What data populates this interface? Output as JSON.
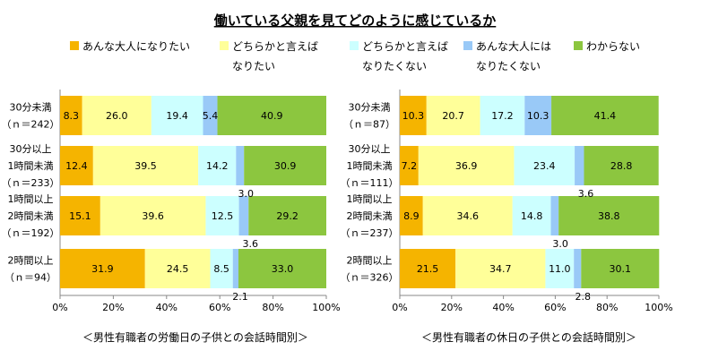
{
  "title": "働いている父親を見てどのように感じているか",
  "legend": [
    {
      "lines": [
        "あんな大人になりたい"
      ],
      "color": "#F5B400"
    },
    {
      "lines": [
        "どちらかと言えば",
        "なりたい"
      ],
      "color": "#FFFF99"
    },
    {
      "lines": [
        "どちらかと言えば",
        "なりたくない"
      ],
      "color": "#CCFFFF"
    },
    {
      "lines": [
        "あんな大人には",
        "なりたくない"
      ],
      "color": "#99C9F7"
    },
    {
      "lines": [
        "わからない"
      ],
      "color": "#8CC63F"
    }
  ],
  "chart_data": [
    {
      "type": "bar",
      "orientation": "horizontal",
      "stacked": true,
      "caption": "＜男性有職者の労働日の子供との会話時間別＞",
      "categories": [
        {
          "lines": [
            "30分未満",
            "（ｎ＝242）"
          ]
        },
        {
          "lines": [
            "30分以上",
            "1時間未満",
            "（ｎ＝233）"
          ]
        },
        {
          "lines": [
            "1時間以上",
            "2時間未満",
            "（ｎ＝192）"
          ]
        },
        {
          "lines": [
            "2時間以上",
            "（ｎ＝94）"
          ]
        }
      ],
      "series": [
        {
          "name": "あんな大人になりたい",
          "values": [
            8.3,
            12.4,
            15.1,
            31.9
          ]
        },
        {
          "name": "どちらかと言えばなりたい",
          "values": [
            26.0,
            39.5,
            39.6,
            24.5
          ]
        },
        {
          "name": "どちらかと言えばなりたくない",
          "values": [
            19.4,
            14.2,
            12.5,
            8.5
          ]
        },
        {
          "name": "あんな大人にはなりたくない",
          "values": [
            5.4,
            3.0,
            3.6,
            2.1
          ]
        },
        {
          "name": "わからない",
          "values": [
            40.9,
            30.9,
            29.2,
            33.0
          ]
        }
      ],
      "xlim": [
        0,
        100
      ],
      "xticks": [
        "0%",
        "20%",
        "40%",
        "60%",
        "80%",
        "100%"
      ]
    },
    {
      "type": "bar",
      "orientation": "horizontal",
      "stacked": true,
      "caption": "＜男性有職者の休日の子供との会話時間別＞",
      "categories": [
        {
          "lines": [
            "30分未満",
            "（ｎ＝87）"
          ]
        },
        {
          "lines": [
            "30分以上",
            "1時間未満",
            "（ｎ＝111）"
          ]
        },
        {
          "lines": [
            "1時間以上",
            "2時間未満",
            "（ｎ＝237）"
          ]
        },
        {
          "lines": [
            "2時間以上",
            "（ｎ＝326）"
          ]
        }
      ],
      "series": [
        {
          "name": "あんな大人になりたい",
          "values": [
            10.3,
            7.2,
            8.9,
            21.5
          ]
        },
        {
          "name": "どちらかと言えばなりたい",
          "values": [
            20.7,
            36.9,
            34.6,
            34.7
          ]
        },
        {
          "name": "どちらかと言えばなりたくない",
          "values": [
            17.2,
            23.4,
            14.8,
            11.0
          ]
        },
        {
          "name": "あんな大人にはなりたくない",
          "values": [
            10.3,
            3.6,
            3.0,
            2.8
          ]
        },
        {
          "name": "わからない",
          "values": [
            41.4,
            28.8,
            38.8,
            30.1
          ]
        }
      ],
      "xlim": [
        0,
        100
      ],
      "xticks": [
        "0%",
        "20%",
        "40%",
        "60%",
        "80%",
        "100%"
      ]
    }
  ]
}
